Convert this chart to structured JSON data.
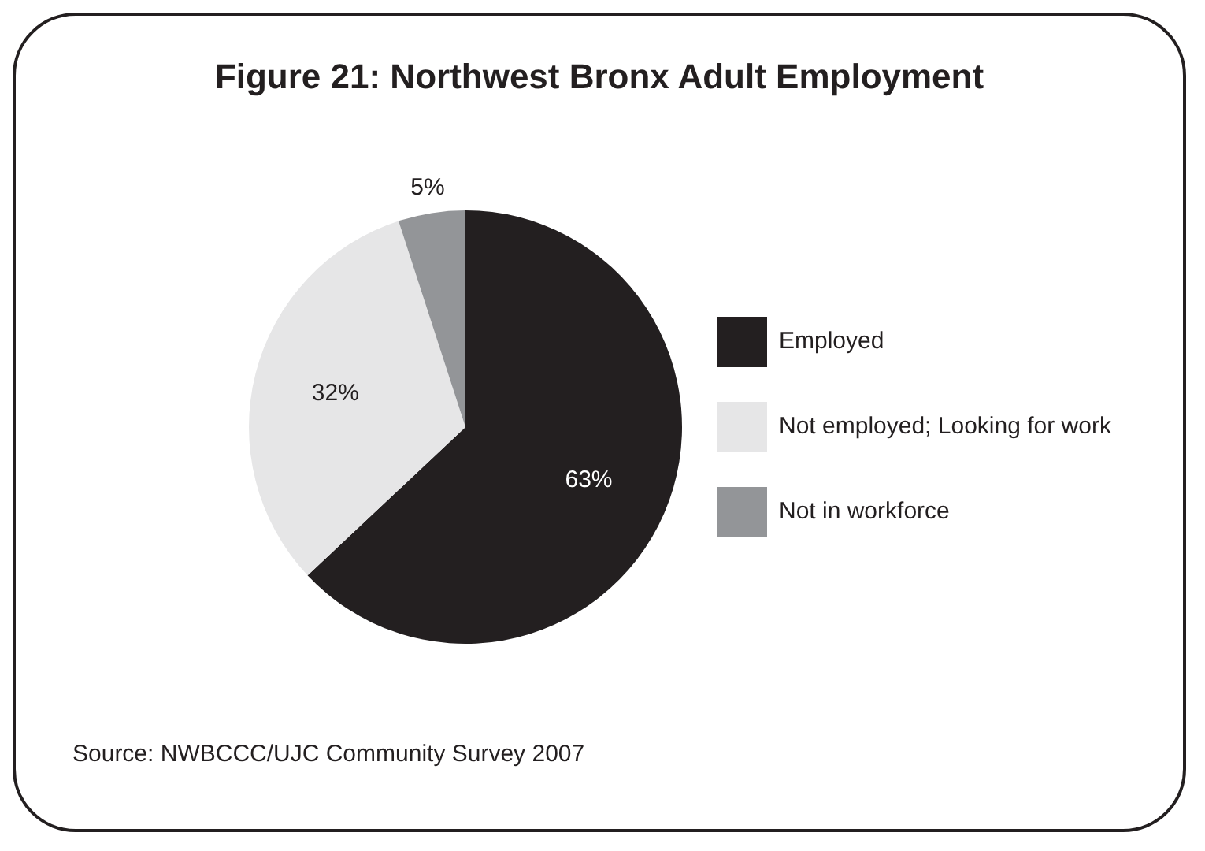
{
  "chart_data": {
    "type": "pie",
    "title": "Figure 21: Northwest Bronx Adult Employment",
    "categories": [
      "Employed",
      "Not employed; Looking for work",
      "Not in workforce"
    ],
    "values": [
      63,
      32,
      5
    ],
    "value_labels": [
      "63%",
      "32%",
      "5%"
    ],
    "colors": [
      "#231f20",
      "#e6e6e7",
      "#939598"
    ],
    "legend": "right",
    "annotations": [
      "Source: NWBCCC/UJC Community Survey 2007"
    ]
  }
}
